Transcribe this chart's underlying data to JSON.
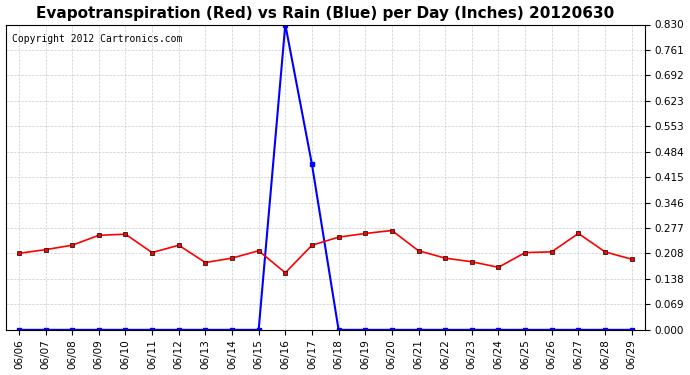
{
  "title": "Evapotranspiration (Red) vs Rain (Blue) per Day (Inches) 20120630",
  "copyright_text": "Copyright 2012 Cartronics.com",
  "x_labels": [
    "06/06",
    "06/07",
    "06/08",
    "06/09",
    "06/10",
    "06/11",
    "06/12",
    "06/13",
    "06/14",
    "06/15",
    "06/16",
    "06/17",
    "06/18",
    "06/19",
    "06/20",
    "06/21",
    "06/22",
    "06/23",
    "06/24",
    "06/25",
    "06/26",
    "06/27",
    "06/28",
    "06/29"
  ],
  "et_red": [
    0.208,
    0.218,
    0.23,
    0.257,
    0.26,
    0.21,
    0.23,
    0.183,
    0.195,
    0.215,
    0.155,
    0.23,
    0.252,
    0.262,
    0.27,
    0.215,
    0.195,
    0.185,
    0.17,
    0.21,
    0.212,
    0.262,
    0.212,
    0.192
  ],
  "rain_blue": [
    0.0,
    0.0,
    0.0,
    0.0,
    0.0,
    0.0,
    0.0,
    0.0,
    0.0,
    0.0,
    0.83,
    0.45,
    0.0,
    0.0,
    0.0,
    0.0,
    0.0,
    0.0,
    0.0,
    0.0,
    0.0,
    0.0,
    0.0,
    0.0
  ],
  "ylim": [
    0.0,
    0.83
  ],
  "yticks": [
    0.0,
    0.069,
    0.138,
    0.208,
    0.277,
    0.346,
    0.415,
    0.484,
    0.553,
    0.623,
    0.692,
    0.761,
    0.83
  ],
  "red_color": "#ff0000",
  "blue_color": "#0000ff",
  "grid_color": "#cccccc",
  "bg_color": "#ffffff",
  "title_fontsize": 11,
  "copyright_fontsize": 7,
  "tick_fontsize": 7.5
}
